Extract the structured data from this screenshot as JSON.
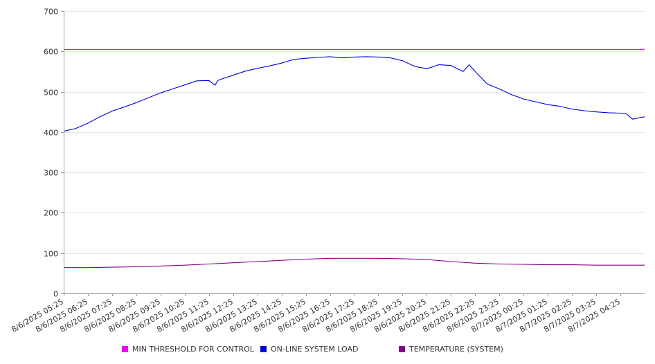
{
  "chart_data": {
    "type": "line",
    "title": "",
    "xlabel": "",
    "ylabel": "",
    "ylim": [
      0,
      700
    ],
    "yticks": [
      0,
      100,
      200,
      300,
      400,
      500,
      600,
      700
    ],
    "grid": true,
    "legend_position": "bottom",
    "x_tick_labels": [
      "8/6/2025 05:25",
      "8/6/2025 06:25",
      "8/6/2025 07:25",
      "8/6/2025 08:25",
      "8/6/2025 09:25",
      "8/6/2025 10:25",
      "8/6/2025 11:25",
      "8/6/2025 12:25",
      "8/6/2025 13:25",
      "8/6/2025 14:25",
      "8/6/2025 15:25",
      "8/6/2025 16:25",
      "8/6/2025 17:25",
      "8/6/2025 18:25",
      "8/6/2025 19:25",
      "8/6/2025 20:25",
      "8/6/2025 21:25",
      "8/6/2025 22:25",
      "8/6/2025 23:25",
      "8/7/2025 00:25",
      "8/7/2025 01:25",
      "8/7/2025 02:25",
      "8/7/2025 03:25",
      "8/7/2025 04:25"
    ],
    "x_start": "8/6/2025 05:25",
    "x_end": "8/7/2025 05:25",
    "series": [
      {
        "name": "MIN THRESHOLD FOR CONTROL",
        "color": "#ee00ee",
        "x": [
          "8/6/2025 05:25",
          "8/7/2025 05:25"
        ],
        "values": [
          605,
          605
        ]
      },
      {
        "name": "ON-LINE SYSTEM LOAD",
        "color": "#0000dd",
        "x": [
          "8/6/2025 05:25",
          "8/6/2025 05:55",
          "8/6/2025 06:25",
          "8/6/2025 06:55",
          "8/6/2025 07:25",
          "8/6/2025 07:55",
          "8/6/2025 08:25",
          "8/6/2025 08:55",
          "8/6/2025 09:25",
          "8/6/2025 09:55",
          "8/6/2025 10:25",
          "8/6/2025 10:55",
          "8/6/2025 11:25",
          "8/6/2025 11:40",
          "8/6/2025 11:47",
          "8/6/2025 11:55",
          "8/6/2025 12:25",
          "8/6/2025 12:55",
          "8/6/2025 13:25",
          "8/6/2025 13:55",
          "8/6/2025 14:25",
          "8/6/2025 14:55",
          "8/6/2025 15:25",
          "8/6/2025 15:55",
          "8/6/2025 16:25",
          "8/6/2025 16:55",
          "8/6/2025 17:25",
          "8/6/2025 17:55",
          "8/6/2025 18:25",
          "8/6/2025 18:55",
          "8/6/2025 19:25",
          "8/6/2025 19:55",
          "8/6/2025 20:25",
          "8/6/2025 20:55",
          "8/6/2025 21:25",
          "8/6/2025 21:55",
          "8/6/2025 22:10",
          "8/6/2025 22:25",
          "8/6/2025 22:55",
          "8/6/2025 23:25",
          "8/6/2025 23:55",
          "8/7/2025 00:25",
          "8/7/2025 00:55",
          "8/7/2025 01:25",
          "8/7/2025 01:55",
          "8/7/2025 02:25",
          "8/7/2025 02:55",
          "8/7/2025 03:25",
          "8/7/2025 03:55",
          "8/7/2025 04:25",
          "8/7/2025 04:40",
          "8/7/2025 04:55",
          "8/7/2025 05:25"
        ],
        "values": [
          402,
          409,
          422,
          438,
          452,
          462,
          473,
          485,
          497,
          507,
          517,
          527,
          528,
          516,
          528,
          531,
          541,
          551,
          558,
          564,
          571,
          580,
          583,
          585,
          587,
          584,
          586,
          587,
          586,
          584,
          577,
          563,
          557,
          567,
          565,
          550,
          567,
          550,
          519,
          507,
          493,
          482,
          475,
          468,
          464,
          457,
          453,
          450,
          448,
          447,
          445,
          432,
          438
        ]
      },
      {
        "name": "TEMPERATURE (SYSTEM)",
        "color": "#880088",
        "x": [
          "8/6/2025 05:25",
          "8/6/2025 06:25",
          "8/6/2025 07:25",
          "8/6/2025 08:25",
          "8/6/2025 09:25",
          "8/6/2025 10:25",
          "8/6/2025 11:25",
          "8/6/2025 12:25",
          "8/6/2025 13:25",
          "8/6/2025 14:25",
          "8/6/2025 15:25",
          "8/6/2025 16:25",
          "8/6/2025 17:25",
          "8/6/2025 18:25",
          "8/6/2025 19:25",
          "8/6/2025 20:25",
          "8/6/2025 21:25",
          "8/6/2025 22:25",
          "8/6/2025 23:25",
          "8/7/2025 00:25",
          "8/7/2025 01:25",
          "8/7/2025 02:25",
          "8/7/2025 03:25",
          "8/7/2025 04:25",
          "8/7/2025 05:25"
        ],
        "values": [
          64,
          64,
          65,
          66,
          68,
          70,
          73,
          76,
          79,
          82,
          85,
          87,
          87,
          87,
          86,
          84,
          79,
          75,
          73,
          72,
          71,
          71,
          70,
          70,
          70
        ]
      }
    ]
  },
  "legend": {
    "items": [
      {
        "label": "MIN THRESHOLD FOR CONTROL",
        "color": "#ee00ee"
      },
      {
        "label": "ON-LINE SYSTEM LOAD",
        "color": "#0000dd"
      },
      {
        "label": "TEMPERATURE (SYSTEM)",
        "color": "#880088"
      }
    ]
  }
}
